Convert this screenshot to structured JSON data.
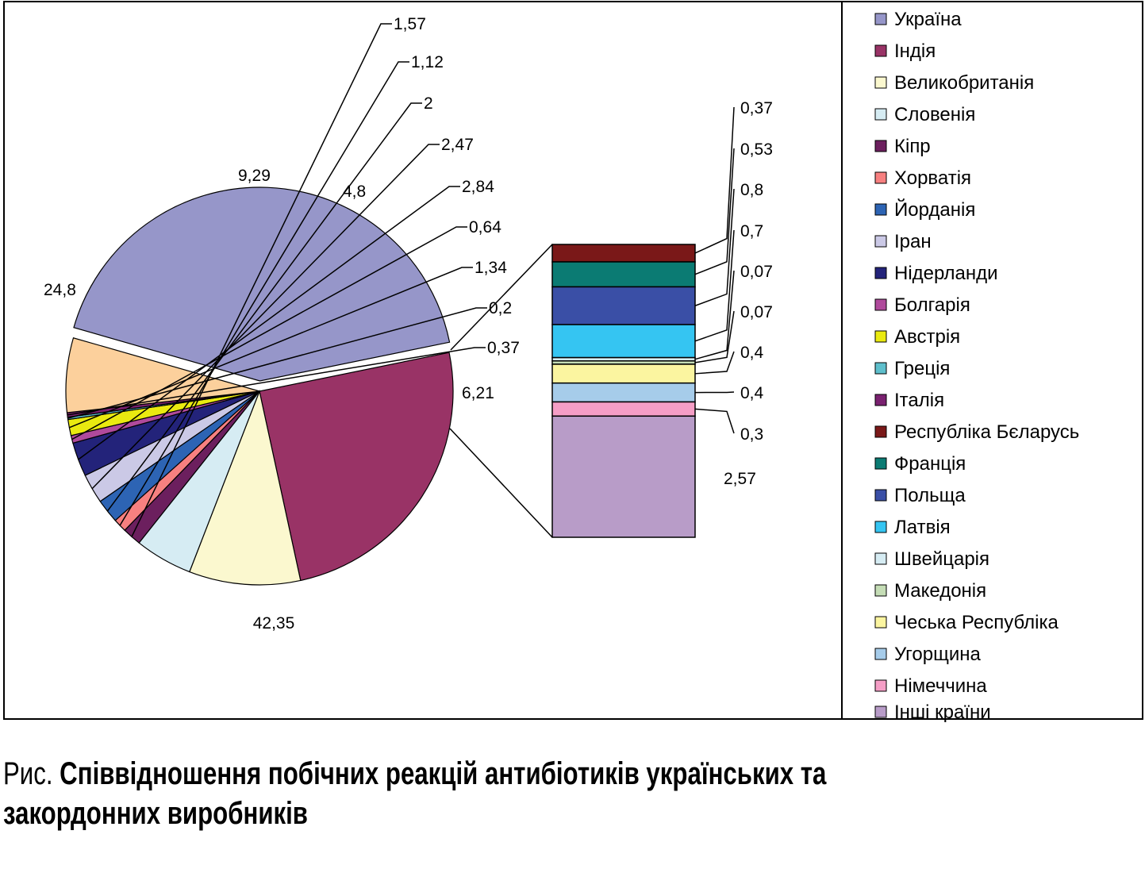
{
  "chart_data": {
    "type": "pie",
    "caption_prefix": "Рис.",
    "title": "Співвідношення побічних реакцій антибіотиків українських та закордонних виробників",
    "title_line1": "Співвідношення побічних реакцій антибіотиків українських та",
    "title_line2": "закордонних виробників",
    "legend_position": "right",
    "main_pie": [
      {
        "name": "Україна",
        "label": "42,35",
        "value": 42.35,
        "color": "#9696c9"
      },
      {
        "name": "Індія",
        "label": "24,8",
        "value": 24.8,
        "color": "#993366"
      },
      {
        "name": "Великобританія",
        "label": "9,29",
        "value": 9.29,
        "color": "#fbf8cf"
      },
      {
        "name": "Словенія",
        "label": "4,8",
        "value": 4.8,
        "color": "#d6ecf3"
      },
      {
        "name": "Кіпр",
        "label": "1,57",
        "value": 1.57,
        "color": "#6c1f5e"
      },
      {
        "name": "Хорватія",
        "label": "1,12",
        "value": 1.12,
        "color": "#f78080"
      },
      {
        "name": "Йорданія",
        "label": "2",
        "value": 2.0,
        "color": "#2d64b4"
      },
      {
        "name": "Іран",
        "label": "2,47",
        "value": 2.47,
        "color": "#cbc9e6"
      },
      {
        "name": "Нідерланди",
        "label": "2,84",
        "value": 2.84,
        "color": "#23237a"
      },
      {
        "name": "Болгарія",
        "label": "0,64",
        "value": 0.64,
        "color": "#b04a9c"
      },
      {
        "name": "Австрія",
        "label": "1,34",
        "value": 1.34,
        "color": "#eaea10"
      },
      {
        "name": "Греція",
        "label": "0,2",
        "value": 0.2,
        "color": "#5ebfcc"
      },
      {
        "name": "Італія",
        "label": "0,37",
        "value": 0.37,
        "color": "#7a2170"
      },
      {
        "name": "Інші країни",
        "label": "6,21",
        "value": 6.21,
        "color": "#fcd09c"
      }
    ],
    "breakdown_bar": [
      {
        "name": "Республіка Бєларусь",
        "label": "0,37",
        "value": 0.37,
        "color": "#7a1818"
      },
      {
        "name": "Франція",
        "label": "0,53",
        "value": 0.53,
        "color": "#0b7b73"
      },
      {
        "name": "Польща",
        "label": "0,8",
        "value": 0.8,
        "color": "#3a4fa6"
      },
      {
        "name": "Латвія",
        "label": "0,7",
        "value": 0.7,
        "color": "#35c5f2"
      },
      {
        "name": "Швейцарія",
        "label": "0,07",
        "value": 0.07,
        "color": "#d6ecf3"
      },
      {
        "name": "Македонія",
        "label": "0,07",
        "value": 0.07,
        "color": "#c5ddb6"
      },
      {
        "name": "Чеська Республіка",
        "label": "0,4",
        "value": 0.4,
        "color": "#fbf5a0"
      },
      {
        "name": "Угорщина",
        "label": "0,4",
        "value": 0.4,
        "color": "#a6ccea"
      },
      {
        "name": "Німеччина",
        "label": "0,3",
        "value": 0.3,
        "color": "#f59ec6"
      },
      {
        "name": "Інші країни",
        "label": "2,57",
        "value": 2.57,
        "color": "#b89cc8"
      }
    ],
    "legend": [
      {
        "name": "Україна",
        "color": "#9696c9"
      },
      {
        "name": "Індія",
        "color": "#993366"
      },
      {
        "name": "Великобританія",
        "color": "#fbf8cf"
      },
      {
        "name": "Словенія",
        "color": "#d6ecf3"
      },
      {
        "name": "Кіпр",
        "color": "#6c1f5e"
      },
      {
        "name": "Хорватія",
        "color": "#f78080"
      },
      {
        "name": "Йорданія",
        "color": "#2d64b4"
      },
      {
        "name": "Іран",
        "color": "#cbc9e6"
      },
      {
        "name": "Нідерланди",
        "color": "#23237a"
      },
      {
        "name": "Болгарія",
        "color": "#b04a9c"
      },
      {
        "name": "Австрія",
        "color": "#eaea10"
      },
      {
        "name": "Греція",
        "color": "#5ebfcc"
      },
      {
        "name": "Італія",
        "color": "#7a2170"
      },
      {
        "name": "Республіка Бєларусь",
        "color": "#7a1818"
      },
      {
        "name": "Франція",
        "color": "#0b7b73"
      },
      {
        "name": "Польща",
        "color": "#3a4fa6"
      },
      {
        "name": "Латвія",
        "color": "#35c5f2"
      },
      {
        "name": "Швейцарія",
        "color": "#d6ecf3"
      },
      {
        "name": "Македонія",
        "color": "#c5ddb6"
      },
      {
        "name": "Чеська Республіка",
        "color": "#fbf5a0"
      },
      {
        "name": "Угорщина",
        "color": "#a6ccea"
      },
      {
        "name": "Німеччина",
        "color": "#f59ec6"
      },
      {
        "name": "Інші країни",
        "color": "#b89cc8"
      }
    ]
  }
}
